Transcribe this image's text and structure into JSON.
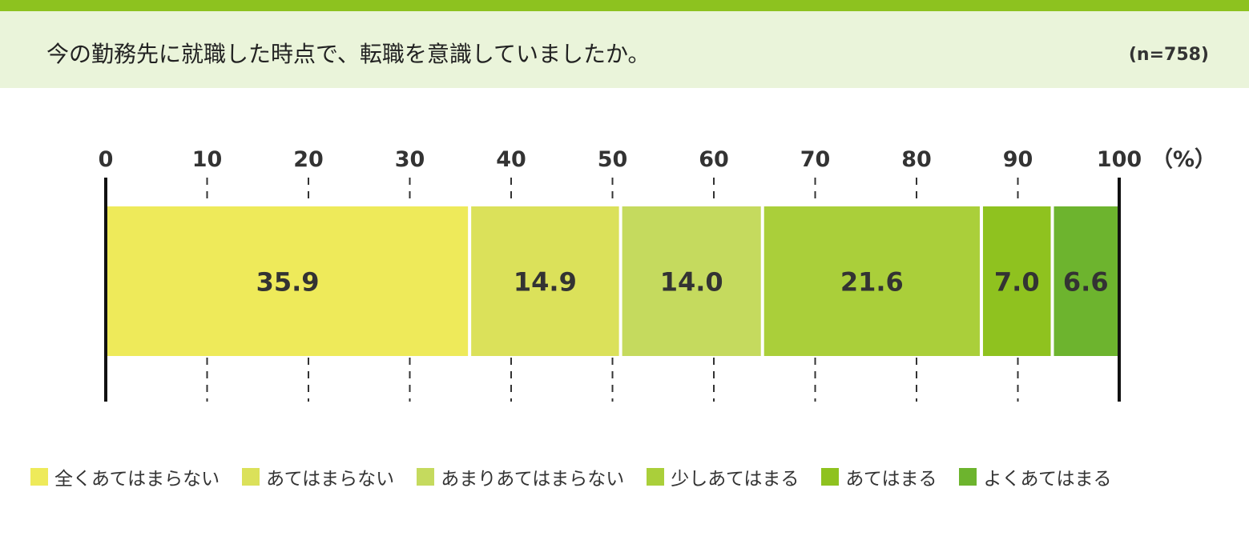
{
  "header": {
    "title": "今の勤務先に就職した時点で、転職を意識していましたか。",
    "sample_size": "(n=758)"
  },
  "colors": {
    "accent_bar": "#8dc21f",
    "header_bg": "#eaf4da"
  },
  "chart_data": {
    "type": "bar",
    "orientation": "horizontal",
    "stacked": true,
    "xlim": [
      0,
      100
    ],
    "x_ticks": [
      "0",
      "10",
      "20",
      "30",
      "40",
      "50",
      "60",
      "70",
      "80",
      "90",
      "100"
    ],
    "unit": "（%）",
    "series": [
      {
        "name": "全くあてはまらない",
        "value": 35.9,
        "label": "35.9",
        "color": "#eeea5a"
      },
      {
        "name": "あてはまらない",
        "value": 14.9,
        "label": "14.9",
        "color": "#dbe15a"
      },
      {
        "name": "あまりあてはまらない",
        "value": 14.0,
        "label": "14.0",
        "color": "#c5da5e"
      },
      {
        "name": "少しあてはまる",
        "value": 21.6,
        "label": "21.6",
        "color": "#aacf3a"
      },
      {
        "name": "あてはまる",
        "value": 7.0,
        "label": "7.0",
        "color": "#8fc21f"
      },
      {
        "name": "よくあてはまる",
        "value": 6.6,
        "label": "6.6",
        "color": "#6db42e"
      }
    ],
    "legend_position": "bottom"
  }
}
